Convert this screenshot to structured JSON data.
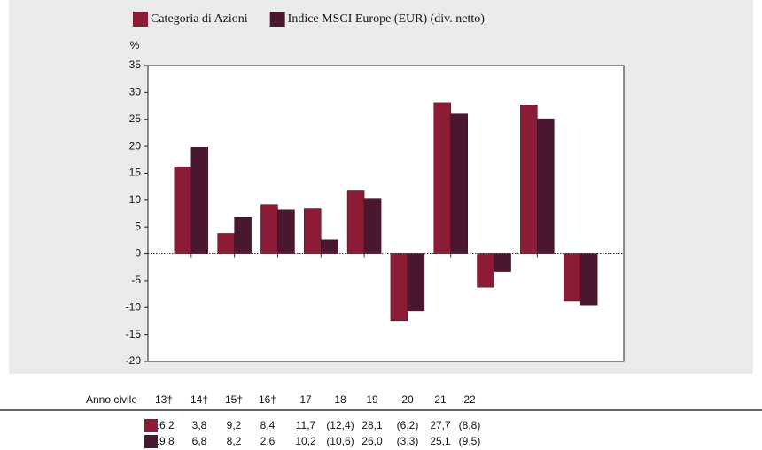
{
  "chart_data": {
    "type": "bar",
    "y_unit": "%",
    "table_label": "Anno civile",
    "categories": [
      "13†",
      "14†",
      "15†",
      "16†",
      "17",
      "18",
      "19",
      "20",
      "21",
      "22"
    ],
    "series": [
      {
        "name": "Categoria di Azioni",
        "color": "#8c1b36",
        "values": [
          16.2,
          3.8,
          9.2,
          8.4,
          11.7,
          -12.4,
          28.1,
          -6.2,
          27.7,
          -8.8
        ],
        "value_labels": [
          "16,2",
          "3,8",
          "9,2",
          "8,4",
          "11,7",
          "(12,4)",
          "28,1",
          "(6,2)",
          "27,7",
          "(8,8)"
        ]
      },
      {
        "name": "Indice MSCI Europe (EUR) (div. netto)",
        "color": "#4a1630",
        "values": [
          19.8,
          6.8,
          8.2,
          2.6,
          10.2,
          -10.6,
          26.0,
          -3.3,
          25.1,
          -9.5
        ],
        "value_labels": [
          "19,8",
          "6,8",
          "8,2",
          "2,6",
          "10,2",
          "(10,6)",
          "26,0",
          "(3,3)",
          "25,1",
          "(9,5)"
        ]
      }
    ],
    "ylim": [
      -20,
      35
    ],
    "yticks": [
      -20,
      -15,
      -10,
      -5,
      0,
      5,
      10,
      15,
      20,
      25,
      30,
      35
    ],
    "legend": "top"
  }
}
